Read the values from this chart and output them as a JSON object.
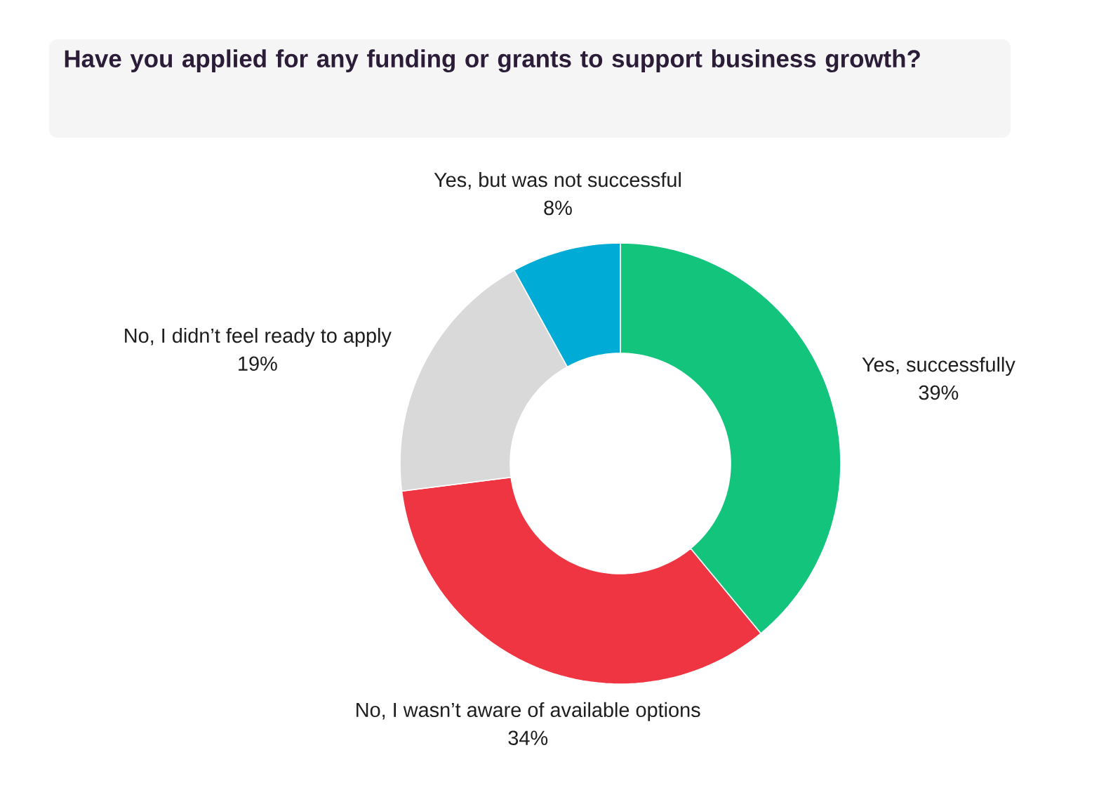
{
  "chart_data": {
    "type": "donut",
    "title": "Have you applied for any funding or grants to support business growth?",
    "categories": [
      "Yes, successfully",
      "No, I wasn’t aware of available options",
      "No, I didn’t feel ready to apply",
      "Yes, but was not successful"
    ],
    "values": [
      39,
      34,
      19,
      8
    ],
    "colors": [
      "#13c47c",
      "#ef3442",
      "#d9d9d9",
      "#00acd6"
    ],
    "value_labels": [
      "39%",
      "34%",
      "19%",
      "8%"
    ]
  }
}
